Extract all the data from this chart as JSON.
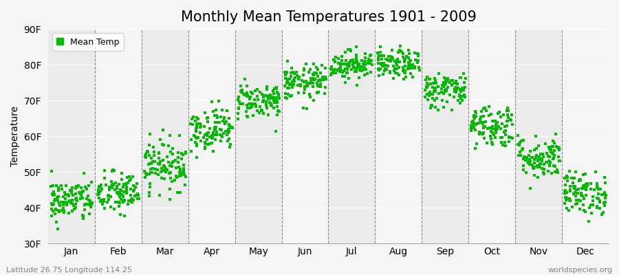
{
  "title": "Monthly Mean Temperatures 1901 - 2009",
  "ylabel": "Temperature",
  "xlabel": "",
  "ylim": [
    30,
    90
  ],
  "yticks": [
    30,
    40,
    50,
    60,
    70,
    80,
    90
  ],
  "ytick_labels": [
    "30F",
    "40F",
    "50F",
    "60F",
    "70F",
    "80F",
    "90F"
  ],
  "months": [
    "Jan",
    "Feb",
    "Mar",
    "Apr",
    "May",
    "Jun",
    "Jul",
    "Aug",
    "Sep",
    "Oct",
    "Nov",
    "Dec"
  ],
  "dot_color": "#00bb00",
  "background_color": "#f5f5f5",
  "band_color_dark": "#ebebeb",
  "band_color_light": "#f5f5f5",
  "legend_label": "Mean Temp",
  "footer_left": "Latitude 26.75 Longitude 114.25",
  "footer_right": "worldspecies.org",
  "title_fontsize": 15,
  "axis_fontsize": 10,
  "footer_fontsize": 8,
  "mean_temps_F": [
    42,
    44,
    52,
    62,
    70,
    75,
    80,
    80,
    73,
    63,
    54,
    44
  ],
  "std_temps_F": [
    3.0,
    3.0,
    3.5,
    3.0,
    2.5,
    2.5,
    2.0,
    2.0,
    2.5,
    3.0,
    3.0,
    3.0
  ],
  "n_years": 109
}
